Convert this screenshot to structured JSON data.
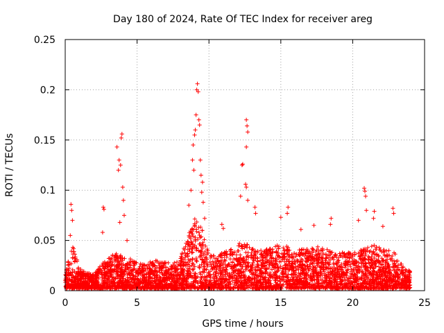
{
  "chart_data": {
    "type": "scatter",
    "title": "Day 180 of 2024, Rate Of TEC Index for receiver areg",
    "xlabel": "GPS time / hours",
    "ylabel": "ROTI / TECUs",
    "xlim": [
      0,
      25
    ],
    "ylim": [
      0,
      0.25
    ],
    "x_ticks": [
      0,
      5,
      10,
      15,
      20,
      25
    ],
    "x_tick_labels": [
      "0",
      "5",
      "10",
      "15",
      "20",
      "25"
    ],
    "y_ticks": [
      0,
      0.05,
      0.1,
      0.15,
      0.2,
      0.25
    ],
    "y_tick_labels": [
      "0",
      "0.05",
      "0.1",
      "0.15",
      "0.2",
      "0.25"
    ],
    "grid": true,
    "marker": "+",
    "color": "#ff0000",
    "baseline_envelope": {
      "x": [
        0.0,
        0.5,
        1.0,
        1.5,
        2.0,
        2.5,
        3.0,
        3.5,
        4.0,
        4.5,
        5.0,
        5.5,
        6.0,
        6.5,
        7.0,
        7.5,
        8.0,
        8.5,
        9.0,
        9.5,
        10.0,
        10.5,
        11.0,
        11.5,
        12.0,
        12.5,
        13.0,
        13.5,
        14.0,
        14.5,
        15.0,
        15.5,
        16.0,
        16.5,
        17.0,
        17.5,
        18.0,
        18.5,
        19.0,
        19.5,
        20.0,
        20.5,
        21.0,
        21.5,
        22.0,
        22.5,
        23.0,
        23.5,
        24.0
      ],
      "upper": [
        0.018,
        0.045,
        0.02,
        0.016,
        0.014,
        0.024,
        0.03,
        0.036,
        0.032,
        0.03,
        0.026,
        0.024,
        0.028,
        0.028,
        0.026,
        0.026,
        0.03,
        0.05,
        0.07,
        0.06,
        0.034,
        0.034,
        0.038,
        0.04,
        0.045,
        0.046,
        0.04,
        0.038,
        0.04,
        0.042,
        0.045,
        0.042,
        0.038,
        0.04,
        0.04,
        0.042,
        0.04,
        0.038,
        0.036,
        0.036,
        0.036,
        0.038,
        0.042,
        0.044,
        0.04,
        0.038,
        0.036,
        0.022,
        0.018
      ]
    },
    "spikes": [
      {
        "x": 0.4,
        "y": 0.086
      },
      {
        "x": 0.45,
        "y": 0.08
      },
      {
        "x": 0.5,
        "y": 0.07
      },
      {
        "x": 0.35,
        "y": 0.055
      },
      {
        "x": 2.65,
        "y": 0.083
      },
      {
        "x": 2.7,
        "y": 0.081
      },
      {
        "x": 2.6,
        "y": 0.058
      },
      {
        "x": 3.6,
        "y": 0.143
      },
      {
        "x": 3.75,
        "y": 0.13
      },
      {
        "x": 3.85,
        "y": 0.125
      },
      {
        "x": 3.7,
        "y": 0.12
      },
      {
        "x": 3.95,
        "y": 0.156
      },
      {
        "x": 3.9,
        "y": 0.152
      },
      {
        "x": 4.0,
        "y": 0.103
      },
      {
        "x": 4.05,
        "y": 0.09
      },
      {
        "x": 4.1,
        "y": 0.075
      },
      {
        "x": 3.8,
        "y": 0.068
      },
      {
        "x": 4.3,
        "y": 0.05
      },
      {
        "x": 8.75,
        "y": 0.1
      },
      {
        "x": 8.9,
        "y": 0.145
      },
      {
        "x": 8.95,
        "y": 0.12
      },
      {
        "x": 9.05,
        "y": 0.16
      },
      {
        "x": 9.1,
        "y": 0.175
      },
      {
        "x": 9.15,
        "y": 0.2
      },
      {
        "x": 9.2,
        "y": 0.206
      },
      {
        "x": 9.25,
        "y": 0.198
      },
      {
        "x": 9.3,
        "y": 0.17
      },
      {
        "x": 9.35,
        "y": 0.165
      },
      {
        "x": 9.4,
        "y": 0.13
      },
      {
        "x": 9.45,
        "y": 0.115
      },
      {
        "x": 9.5,
        "y": 0.098
      },
      {
        "x": 9.6,
        "y": 0.088
      },
      {
        "x": 9.7,
        "y": 0.072
      },
      {
        "x": 8.6,
        "y": 0.085
      },
      {
        "x": 9.0,
        "y": 0.155
      },
      {
        "x": 8.85,
        "y": 0.13
      },
      {
        "x": 9.55,
        "y": 0.108
      },
      {
        "x": 12.3,
        "y": 0.125
      },
      {
        "x": 12.35,
        "y": 0.126
      },
      {
        "x": 12.6,
        "y": 0.17
      },
      {
        "x": 12.65,
        "y": 0.164
      },
      {
        "x": 12.7,
        "y": 0.158
      },
      {
        "x": 12.6,
        "y": 0.143
      },
      {
        "x": 12.55,
        "y": 0.106
      },
      {
        "x": 12.6,
        "y": 0.103
      },
      {
        "x": 12.2,
        "y": 0.094
      },
      {
        "x": 12.7,
        "y": 0.09
      },
      {
        "x": 13.2,
        "y": 0.083
      },
      {
        "x": 13.25,
        "y": 0.077
      },
      {
        "x": 11.0,
        "y": 0.062
      },
      {
        "x": 10.9,
        "y": 0.066
      },
      {
        "x": 15.0,
        "y": 0.073
      },
      {
        "x": 15.5,
        "y": 0.083
      },
      {
        "x": 15.45,
        "y": 0.077
      },
      {
        "x": 16.4,
        "y": 0.061
      },
      {
        "x": 17.3,
        "y": 0.065
      },
      {
        "x": 18.5,
        "y": 0.072
      },
      {
        "x": 18.45,
        "y": 0.066
      },
      {
        "x": 20.8,
        "y": 0.102
      },
      {
        "x": 20.85,
        "y": 0.099
      },
      {
        "x": 20.9,
        "y": 0.094
      },
      {
        "x": 20.95,
        "y": 0.08
      },
      {
        "x": 20.4,
        "y": 0.07
      },
      {
        "x": 21.5,
        "y": 0.079
      },
      {
        "x": 21.45,
        "y": 0.072
      },
      {
        "x": 22.8,
        "y": 0.082
      },
      {
        "x": 22.85,
        "y": 0.077
      },
      {
        "x": 22.1,
        "y": 0.064
      }
    ]
  }
}
